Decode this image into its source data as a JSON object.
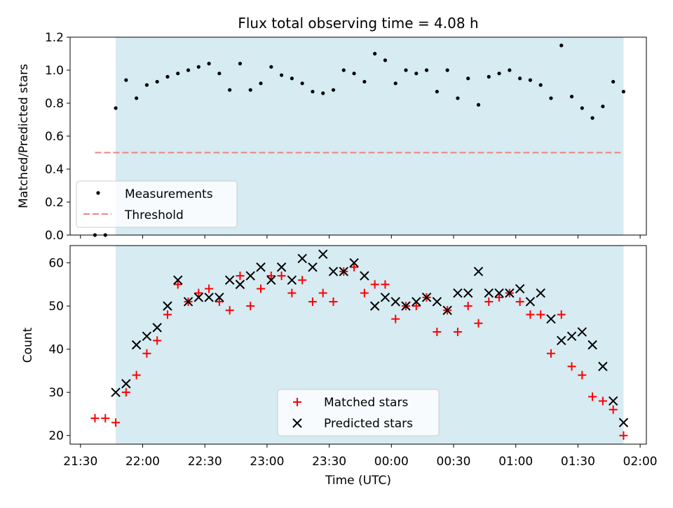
{
  "chart_data": [
    {
      "type": "scatter",
      "title": "Flux total observing time = 4.08 h",
      "ylabel": "Matched/Predicted stars",
      "xlabel": "",
      "xlim": [
        "21:25",
        "02:03"
      ],
      "ylim": [
        0,
        1.2
      ],
      "yticks": [
        "0.0",
        "0.2",
        "0.4",
        "0.6",
        "0.8",
        "1.0",
        "1.2"
      ],
      "observing_window": [
        "21:47",
        "01:52"
      ],
      "threshold": {
        "name": "Threshold",
        "value": 0.5,
        "x": [
          "21:37",
          "01:52"
        ]
      },
      "legend_location": "lower-left",
      "series": [
        {
          "name": "Measurements",
          "x": [
            "21:37",
            "21:42",
            "21:47",
            "21:52",
            "21:57",
            "22:02",
            "22:07",
            "22:12",
            "22:17",
            "22:22",
            "22:27",
            "22:32",
            "22:37",
            "22:42",
            "22:47",
            "22:52",
            "22:57",
            "23:02",
            "23:07",
            "23:12",
            "23:17",
            "23:22",
            "23:27",
            "23:32",
            "23:37",
            "23:42",
            "23:47",
            "23:52",
            "23:57",
            "00:02",
            "00:07",
            "00:12",
            "00:17",
            "00:22",
            "00:27",
            "00:32",
            "00:37",
            "00:42",
            "00:47",
            "00:52",
            "00:57",
            "01:02",
            "01:07",
            "01:12",
            "01:17",
            "01:22",
            "01:27",
            "01:32",
            "01:37",
            "01:42",
            "01:47",
            "01:52"
          ],
          "y": [
            0.0,
            0.0,
            0.77,
            0.94,
            0.83,
            0.91,
            0.93,
            0.96,
            0.98,
            1.0,
            1.02,
            1.04,
            0.98,
            0.88,
            1.04,
            0.88,
            0.92,
            1.02,
            0.97,
            0.95,
            0.92,
            0.87,
            0.86,
            0.88,
            1.0,
            0.98,
            0.93,
            1.1,
            1.06,
            0.92,
            1.0,
            0.98,
            1.0,
            0.87,
            1.0,
            0.83,
            0.95,
            0.79,
            0.96,
            0.98,
            1.0,
            0.95,
            0.94,
            0.91,
            0.83,
            1.15,
            0.84,
            0.77,
            0.71,
            0.78,
            0.93,
            0.87
          ]
        }
      ]
    },
    {
      "type": "scatter",
      "title": "",
      "ylabel": "Count",
      "xlabel": "Time (UTC)",
      "xlim": [
        "21:25",
        "02:03"
      ],
      "ylim": [
        18,
        64
      ],
      "yticks": [
        "20",
        "30",
        "40",
        "50",
        "60"
      ],
      "xticks": [
        "21:30",
        "22:00",
        "22:30",
        "23:00",
        "23:30",
        "00:00",
        "00:30",
        "01:00",
        "01:30",
        "02:00"
      ],
      "observing_window": [
        "21:47",
        "01:52"
      ],
      "legend_location": "lower-center",
      "series": [
        {
          "name": "Matched stars",
          "x": [
            "21:37",
            "21:42",
            "21:47",
            "21:52",
            "21:57",
            "22:02",
            "22:07",
            "22:12",
            "22:17",
            "22:22",
            "22:27",
            "22:32",
            "22:37",
            "22:42",
            "22:47",
            "22:52",
            "22:57",
            "23:02",
            "23:07",
            "23:12",
            "23:17",
            "23:22",
            "23:27",
            "23:32",
            "23:37",
            "23:42",
            "23:47",
            "23:52",
            "23:57",
            "00:02",
            "00:07",
            "00:12",
            "00:17",
            "00:22",
            "00:27",
            "00:32",
            "00:37",
            "00:42",
            "00:47",
            "00:52",
            "00:57",
            "01:02",
            "01:07",
            "01:12",
            "01:17",
            "01:22",
            "01:27",
            "01:32",
            "01:37",
            "01:42",
            "01:47",
            "01:52"
          ],
          "y": [
            24,
            24,
            23,
            30,
            34,
            39,
            42,
            48,
            55,
            51,
            53,
            54,
            51,
            49,
            57,
            50,
            54,
            57,
            57,
            53,
            56,
            51,
            53,
            51,
            58,
            59,
            53,
            55,
            55,
            47,
            50,
            50,
            52,
            44,
            49,
            44,
            50,
            46,
            51,
            52,
            53,
            51,
            48,
            48,
            39,
            48,
            36,
            34,
            29,
            28,
            26,
            20
          ]
        },
        {
          "name": "Predicted stars",
          "x": [
            "21:47",
            "21:52",
            "21:57",
            "22:02",
            "22:07",
            "22:12",
            "22:17",
            "22:22",
            "22:27",
            "22:32",
            "22:37",
            "22:42",
            "22:47",
            "22:52",
            "22:57",
            "23:02",
            "23:07",
            "23:12",
            "23:17",
            "23:22",
            "23:27",
            "23:32",
            "23:37",
            "23:42",
            "23:47",
            "23:52",
            "23:57",
            "00:02",
            "00:07",
            "00:12",
            "00:17",
            "00:22",
            "00:27",
            "00:32",
            "00:37",
            "00:42",
            "00:47",
            "00:52",
            "00:57",
            "01:02",
            "01:07",
            "01:12",
            "01:17",
            "01:22",
            "01:27",
            "01:32",
            "01:37",
            "01:42",
            "01:47",
            "01:52"
          ],
          "y": [
            30,
            32,
            41,
            43,
            45,
            50,
            56,
            51,
            52,
            52,
            52,
            56,
            55,
            57,
            59,
            56,
            59,
            56,
            61,
            59,
            62,
            58,
            58,
            60,
            57,
            50,
            52,
            51,
            50,
            51,
            52,
            51,
            49,
            53,
            53,
            58,
            53,
            53,
            53,
            54,
            51,
            53,
            47,
            42,
            43,
            44,
            41,
            36,
            28,
            23
          ]
        }
      ]
    }
  ]
}
